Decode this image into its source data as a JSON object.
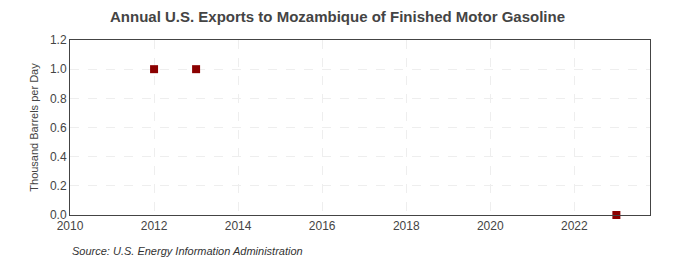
{
  "chart_data": {
    "type": "scatter",
    "title": "Annual U.S. Exports to Mozambique of Finished Motor Gasoline",
    "ylabel": "Thousand Barrels per Day",
    "source": "Source: U.S. Energy Information Administration",
    "x": [
      2012,
      2013,
      2023
    ],
    "values": [
      1.0,
      1.0,
      0.0
    ],
    "color": "#8b0000",
    "marker": "square",
    "xlim": [
      2010,
      2023.8
    ],
    "xticks": [
      2010,
      2012,
      2014,
      2016,
      2018,
      2020,
      2022
    ],
    "ylim": [
      0.0,
      1.2
    ],
    "yticks": [
      {
        "value": 0,
        "label": "0.0"
      },
      0.2,
      0.4,
      0.6,
      0.8,
      {
        "value": 1,
        "label": "1.0"
      },
      1.2
    ],
    "grid": true
  }
}
